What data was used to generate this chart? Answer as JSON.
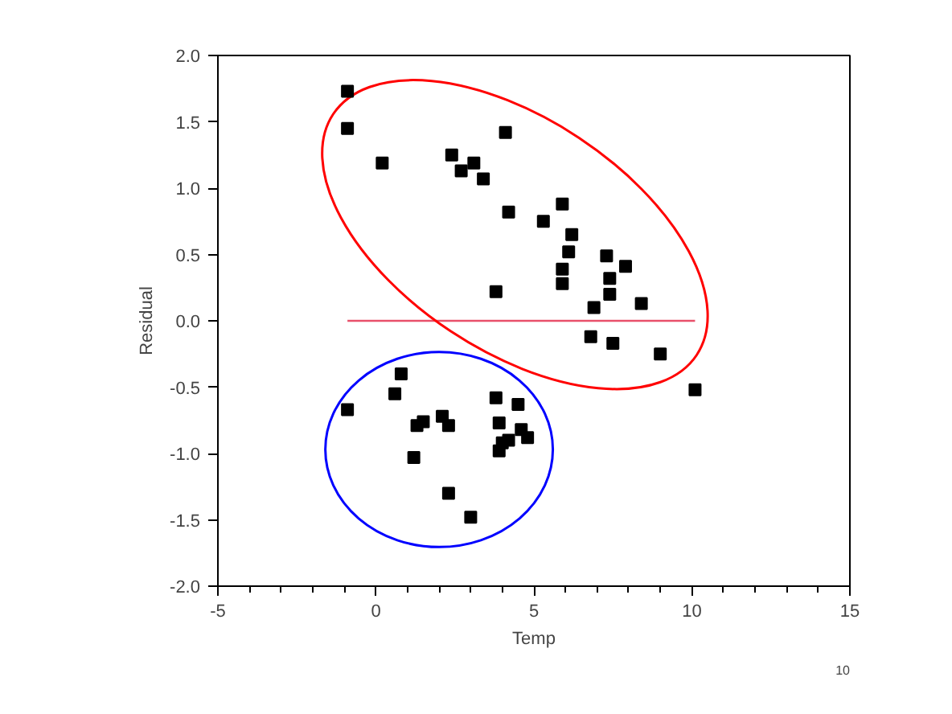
{
  "chart_data": {
    "type": "scatter",
    "xlabel": "Temp",
    "ylabel": "Residual",
    "marker": "square",
    "grid": false,
    "xlim": [
      -5,
      15
    ],
    "xticks": [
      -5,
      0,
      5,
      10,
      15
    ],
    "ylim": [
      -2.0,
      2.0
    ],
    "yticks": [
      {
        "value": -2,
        "label": "-2.0"
      },
      {
        "value": -1.5,
        "label": "-1.5"
      },
      {
        "value": -1,
        "label": "-1.0"
      },
      {
        "value": -0.5,
        "label": "-0.5"
      },
      {
        "value": 0,
        "label": "0.0"
      },
      {
        "value": 0.5,
        "label": "0.5"
      },
      {
        "value": 1,
        "label": "1.0"
      },
      {
        "value": 1.5,
        "label": "1.5"
      },
      {
        "value": 2,
        "label": "2.0"
      }
    ],
    "series": [
      {
        "color": "#000000",
        "x": [
          -0.9,
          -0.9,
          0.2,
          2.4,
          2.7,
          3.1,
          3.4,
          4.1,
          4.2,
          5.3,
          5.9,
          6.2,
          6.1,
          5.9,
          5.9,
          3.8,
          7.3,
          7.9,
          7.4,
          7.4,
          6.9,
          8.4,
          6.8,
          7.5,
          9.0,
          10.1,
          0.8,
          0.6,
          -0.9,
          1.3,
          1.5,
          2.1,
          2.3,
          1.2,
          2.3,
          3.0,
          3.8,
          4.5,
          3.9,
          4.6,
          4.8,
          4.2,
          4.0,
          3.9
        ],
        "values": [
          1.73,
          1.45,
          1.19,
          1.25,
          1.13,
          1.19,
          1.07,
          1.42,
          0.82,
          0.75,
          0.88,
          0.65,
          0.52,
          0.39,
          0.28,
          0.22,
          0.49,
          0.41,
          0.32,
          0.2,
          0.1,
          0.13,
          -0.12,
          -0.17,
          -0.25,
          -0.52,
          -0.4,
          -0.55,
          -0.67,
          -0.79,
          -0.76,
          -0.72,
          -0.79,
          -1.03,
          -1.3,
          -1.48,
          -0.58,
          -0.63,
          -0.77,
          -0.82,
          -0.88,
          -0.9,
          -0.92,
          -0.98
        ]
      }
    ],
    "ref_lines": [
      {
        "axis": "y",
        "value": 0,
        "color": "#e8506a"
      }
    ],
    "annotations": [
      "10"
    ]
  }
}
